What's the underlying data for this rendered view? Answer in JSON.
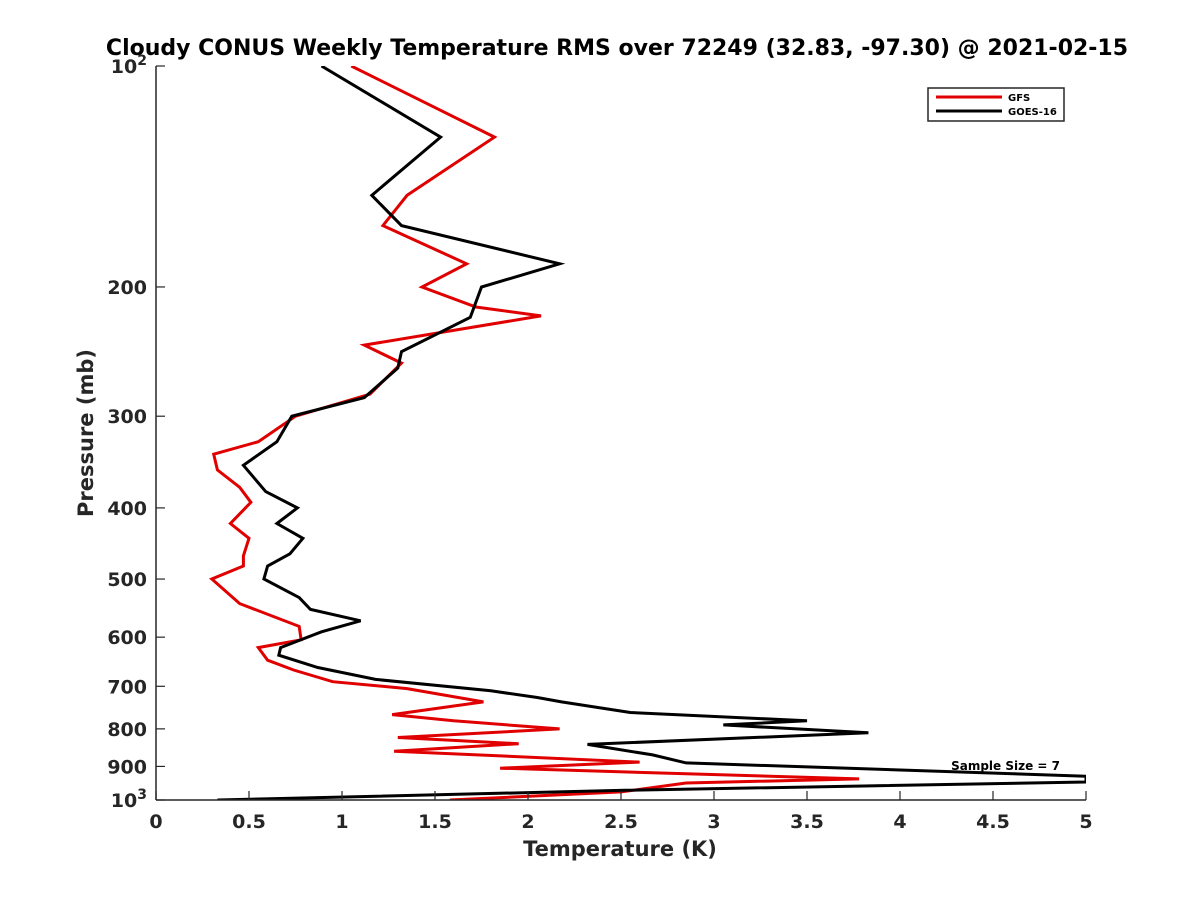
{
  "chart_data": {
    "type": "line",
    "title": "Cloudy CONUS Weekly Temperature RMS over 72249 (32.83, -97.30) @ 2021-02-15",
    "xlabel": "Temperature (K)",
    "ylabel": "Pressure (mb)",
    "xlim": [
      0,
      5
    ],
    "ylim": [
      100,
      1000
    ],
    "y_scale": "log",
    "y_reversed": true,
    "grid": false,
    "legend_position": "top-right",
    "x_ticks": [
      0,
      0.5,
      1,
      1.5,
      2,
      2.5,
      3,
      3.5,
      4,
      4.5,
      5
    ],
    "x_tick_labels": [
      "0",
      "0.5",
      "1",
      "1.5",
      "2",
      "2.5",
      "3",
      "3.5",
      "4",
      "4.5",
      "5"
    ],
    "y_ticks": [
      100,
      200,
      300,
      400,
      500,
      600,
      700,
      800,
      900,
      1000
    ],
    "y_tick_labels": [
      {
        "base": "10",
        "exp": "2"
      },
      {
        "base": "200",
        "exp": ""
      },
      {
        "base": "300",
        "exp": ""
      },
      {
        "base": "400",
        "exp": ""
      },
      {
        "base": "500",
        "exp": ""
      },
      {
        "base": "600",
        "exp": ""
      },
      {
        "base": "700",
        "exp": ""
      },
      {
        "base": "800",
        "exp": ""
      },
      {
        "base": "900",
        "exp": ""
      },
      {
        "base": "10",
        "exp": "3"
      }
    ],
    "annotation": "Sample Size = 7",
    "series": [
      {
        "name": "GFS",
        "color": "#e00000",
        "points": [
          [
            1.05,
            100
          ],
          [
            1.82,
            125
          ],
          [
            1.35,
            150
          ],
          [
            1.22,
            165
          ],
          [
            1.67,
            186
          ],
          [
            1.43,
            200
          ],
          [
            1.72,
            213
          ],
          [
            2.07,
            219
          ],
          [
            1.12,
            240
          ],
          [
            1.32,
            254
          ],
          [
            1.15,
            280
          ],
          [
            0.75,
            300
          ],
          [
            0.55,
            325
          ],
          [
            0.31,
            338
          ],
          [
            0.33,
            355
          ],
          [
            0.45,
            375
          ],
          [
            0.51,
            393
          ],
          [
            0.4,
            420
          ],
          [
            0.5,
            440
          ],
          [
            0.47,
            465
          ],
          [
            0.47,
            480
          ],
          [
            0.3,
            500
          ],
          [
            0.45,
            540
          ],
          [
            0.77,
            580
          ],
          [
            0.78,
            605
          ],
          [
            0.55,
            620
          ],
          [
            0.6,
            645
          ],
          [
            0.74,
            665
          ],
          [
            0.95,
            690
          ],
          [
            1.35,
            705
          ],
          [
            1.76,
            735
          ],
          [
            1.27,
            765
          ],
          [
            1.6,
            780
          ],
          [
            2.17,
            800
          ],
          [
            1.3,
            822
          ],
          [
            1.95,
            838
          ],
          [
            1.28,
            858
          ],
          [
            2.6,
            888
          ],
          [
            1.85,
            905
          ],
          [
            3.78,
            936
          ],
          [
            2.85,
            948
          ],
          [
            2.5,
            975
          ],
          [
            1.58,
            1000
          ]
        ]
      },
      {
        "name": "GOES-16",
        "color": "#000000",
        "points": [
          [
            0.89,
            100
          ],
          [
            1.53,
            125
          ],
          [
            1.16,
            150
          ],
          [
            1.32,
            165
          ],
          [
            2.17,
            186
          ],
          [
            1.75,
            200
          ],
          [
            1.69,
            220
          ],
          [
            1.32,
            245
          ],
          [
            1.3,
            258
          ],
          [
            1.12,
            283
          ],
          [
            0.73,
            300
          ],
          [
            0.65,
            325
          ],
          [
            0.47,
            350
          ],
          [
            0.59,
            380
          ],
          [
            0.76,
            400
          ],
          [
            0.65,
            420
          ],
          [
            0.79,
            440
          ],
          [
            0.72,
            462
          ],
          [
            0.6,
            480
          ],
          [
            0.58,
            500
          ],
          [
            0.77,
            530
          ],
          [
            0.83,
            550
          ],
          [
            1.1,
            570
          ],
          [
            0.89,
            590
          ],
          [
            0.67,
            620
          ],
          [
            0.66,
            635
          ],
          [
            0.87,
            660
          ],
          [
            1.18,
            685
          ],
          [
            1.8,
            710
          ],
          [
            2.05,
            725
          ],
          [
            2.18,
            735
          ],
          [
            2.55,
            760
          ],
          [
            3.5,
            780
          ],
          [
            3.05,
            790
          ],
          [
            3.83,
            810
          ],
          [
            2.32,
            840
          ],
          [
            2.67,
            868
          ],
          [
            2.85,
            890
          ],
          [
            5.0,
            928
          ],
          [
            5.0,
            945
          ],
          [
            2.52,
            970
          ],
          [
            0.33,
            1000
          ]
        ]
      }
    ]
  }
}
